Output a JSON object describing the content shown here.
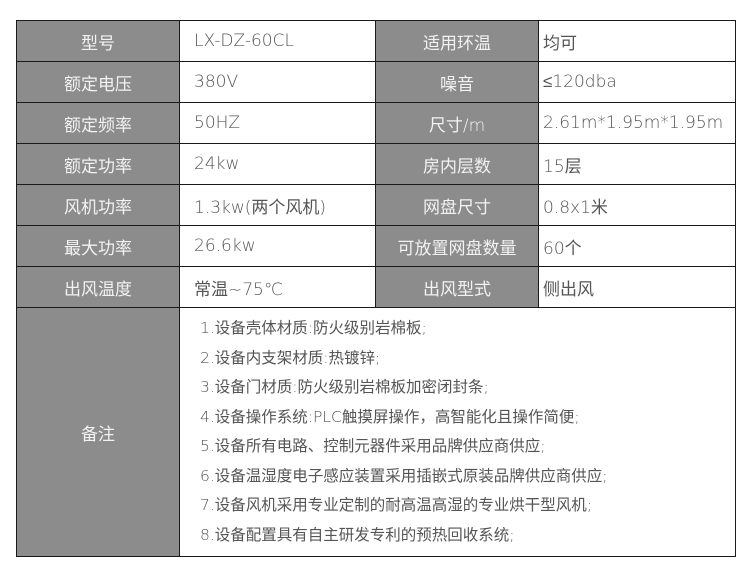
{
  "rows": [
    {
      "k1": "型号",
      "v1": "LX-DZ-60CL",
      "k2": "适用环温",
      "v2": "均可"
    },
    {
      "k1": "额定电压",
      "v1": "380V",
      "k2": "噪音",
      "v2": "≤120dba"
    },
    {
      "k1": "额定频率",
      "v1": "50HZ",
      "k2": "尺寸/m",
      "v2": "2.61m*1.95m*1.95m"
    },
    {
      "k1": "额定功率",
      "v1": "24kw",
      "k2": "房内层数",
      "v2": "15层"
    },
    {
      "k1": "风机功率",
      "v1": "1.3kw(两个风机)",
      "k2": "网盘尺寸",
      "v2": "0.8x1米"
    },
    {
      "k1": "最大功率",
      "v1": "26.6kw",
      "k2": "可放置网盘数量",
      "v2": "60个"
    },
    {
      "k1": "出风温度",
      "v1": "常温~75℃",
      "k2": "出风型式",
      "v2": "侧出风"
    }
  ],
  "remarks": {
    "label": "备注",
    "items": [
      "1.设备壳体材质:防火级别岩棉板;",
      "2.设备内支架材质:热镀锌;",
      "3.设备门材质:防火级别岩棉板加密闭封条;",
      "4.设备操作系统:PLC触摸屏操作，高智能化且操作简便;",
      "5.设备所有电路、控制元器件采用品牌供应商供应;",
      "6.设备温湿度电子感应装置采用插嵌式原装品牌供应商供应;",
      "7.设备风机采用专业定制的耐高温高湿的专业烘干型风机;",
      "8.设备配置具有自主研发专利的预热回收系统;"
    ]
  },
  "colors": {
    "header_bg": "#8c8c8c",
    "border": "#1a1a1a",
    "text": "#555555"
  }
}
